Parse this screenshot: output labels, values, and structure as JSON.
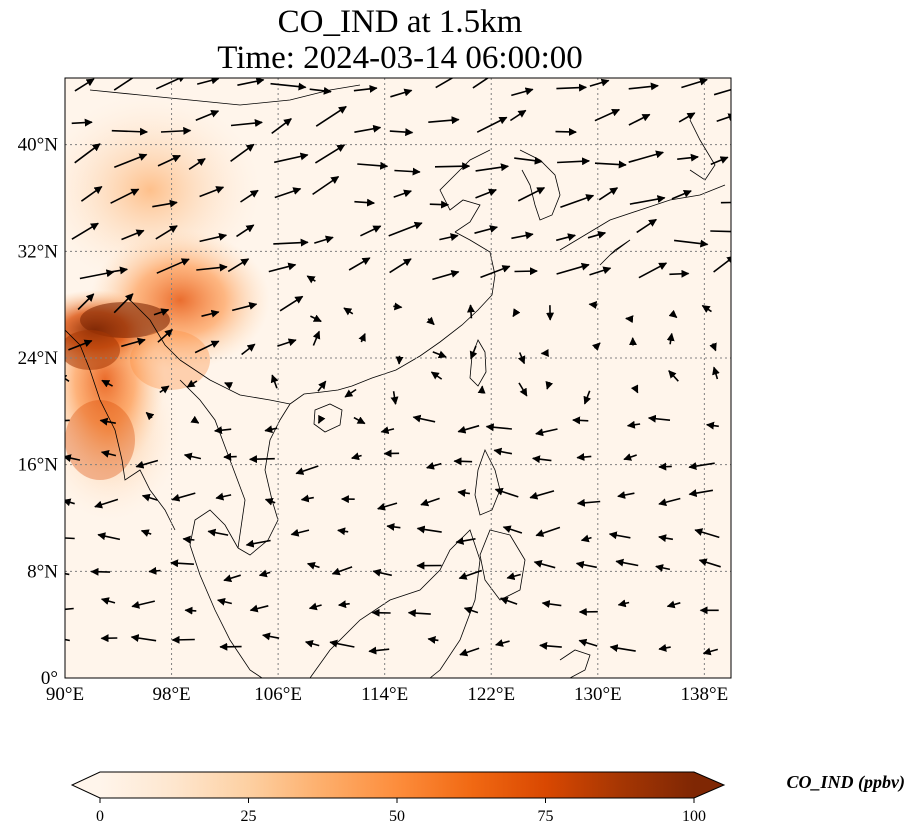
{
  "title": {
    "line1": "CO_IND at 1.5km",
    "line2": "Time: 2024-03-14 06:00:00"
  },
  "map": {
    "lon_range": [
      90,
      140
    ],
    "lat_range": [
      0,
      45
    ],
    "lon_ticks": [
      {
        "value": 90,
        "label": "90°E"
      },
      {
        "value": 98,
        "label": "98°E"
      },
      {
        "value": 106,
        "label": "106°E"
      },
      {
        "value": 114,
        "label": "114°E"
      },
      {
        "value": 122,
        "label": "122°E"
      },
      {
        "value": 130,
        "label": "130°E"
      },
      {
        "value": 138,
        "label": "138°E"
      }
    ],
    "lat_ticks": [
      {
        "value": 0,
        "label": "0°"
      },
      {
        "value": 8,
        "label": "8°N"
      },
      {
        "value": 16,
        "label": "16°N"
      },
      {
        "value": 24,
        "label": "24°N"
      },
      {
        "value": 32,
        "label": "32°N"
      },
      {
        "value": 40,
        "label": "40°N"
      }
    ],
    "grid": true,
    "colors": {
      "background": "#fff5eb",
      "coast": "#000000",
      "grid": "#808080",
      "arrow": "#000000"
    }
  },
  "colorbar": {
    "title": "CO_IND (ppbv)",
    "range": [
      0,
      100
    ],
    "ticks": [
      {
        "value": 0,
        "label": "0"
      },
      {
        "value": 25,
        "label": "25"
      },
      {
        "value": 50,
        "label": "50"
      },
      {
        "value": 75,
        "label": "75"
      },
      {
        "value": 100,
        "label": "100"
      }
    ],
    "colormap": [
      "#fff5eb",
      "#fee6ce",
      "#fdd0a2",
      "#fdae6b",
      "#fd8d3c",
      "#f16913",
      "#d94801",
      "#a63603",
      "#7f2704"
    ],
    "extend": "both"
  }
}
